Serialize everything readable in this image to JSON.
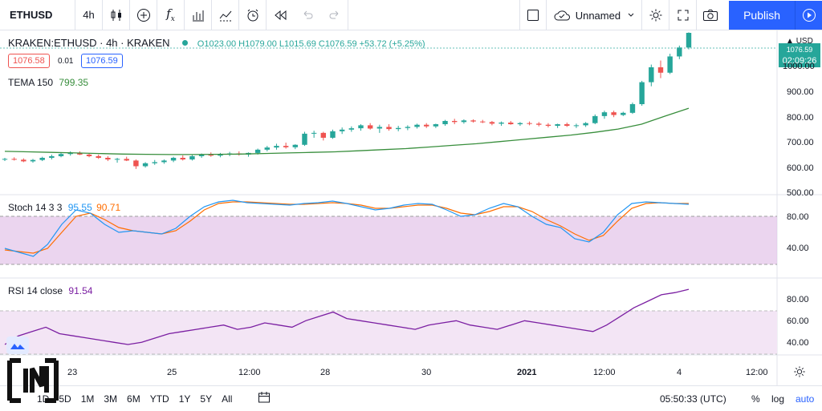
{
  "toolbar": {
    "symbol": "ETHUSD",
    "interval": "4h",
    "layout_name": "Unnamed",
    "publish_label": "Publish"
  },
  "legend": {
    "title": "KRAKEN:ETHUSD · 4h · KRAKEN",
    "ohlc": "O1023.00 H1079.00 L1015.69 C1076.59 +53.72 (+5.25%)",
    "bid": "1076.58",
    "spread": "0.01",
    "ask": "1076.59",
    "tema_label": "TEMA 150",
    "tema_value": "799.35"
  },
  "stoch": {
    "label": "Stoch 14 3 3",
    "k": "95.55",
    "d": "90.71"
  },
  "rsi": {
    "label": "RSI 14 close",
    "value": "91.54"
  },
  "price_axis": {
    "currency": "USD",
    "last_price_top": "1076.59",
    "countdown": "02:09:26",
    "ticks": [
      "1000.00",
      "900.00",
      "800.00",
      "700.00",
      "600.00",
      "500.00"
    ]
  },
  "stoch_axis": [
    "80.00",
    "40.00"
  ],
  "rsi_axis": [
    "80.00",
    "60.00",
    "40.00"
  ],
  "time_axis": [
    "23",
    "25",
    "12:00",
    "28",
    "30",
    "2021",
    "12:00",
    "4",
    "12:00"
  ],
  "bottom": {
    "ranges": [
      "1D",
      "5D",
      "1M",
      "3M",
      "6M",
      "YTD",
      "1Y",
      "5Y",
      "All"
    ],
    "clock": "05:50:33 (UTC)",
    "percent": "%",
    "log": "log",
    "auto": "auto"
  },
  "colors": {
    "up": "#26a69a",
    "down": "#ef5350",
    "tema": "#388e3c",
    "stoch_k": "#2196f3",
    "stoch_d": "#ff6d00",
    "rsi": "#7b1fa2",
    "accent": "#2962ff"
  },
  "chart_data": {
    "type": "candlestick",
    "price_range": [
      480,
      1080
    ],
    "ohlc": [
      [
        610,
        616,
        604,
        612
      ],
      [
        612,
        618,
        606,
        609
      ],
      [
        609,
        614,
        600,
        603
      ],
      [
        603,
        612,
        598,
        608
      ],
      [
        608,
        620,
        604,
        616
      ],
      [
        616,
        628,
        610,
        622
      ],
      [
        622,
        635,
        618,
        630
      ],
      [
        630,
        640,
        624,
        634
      ],
      [
        634,
        640,
        626,
        628
      ],
      [
        628,
        632,
        618,
        622
      ],
      [
        622,
        628,
        612,
        616
      ],
      [
        616,
        622,
        604,
        610
      ],
      [
        610,
        616,
        598,
        612
      ],
      [
        612,
        620,
        604,
        606
      ],
      [
        606,
        610,
        575,
        585
      ],
      [
        585,
        600,
        580,
        596
      ],
      [
        596,
        608,
        590,
        600
      ],
      [
        600,
        610,
        594,
        606
      ],
      [
        606,
        620,
        600,
        616
      ],
      [
        616,
        625,
        606,
        610
      ],
      [
        610,
        626,
        606,
        622
      ],
      [
        622,
        632,
        616,
        628
      ],
      [
        628,
        636,
        620,
        624
      ],
      [
        624,
        634,
        618,
        630
      ],
      [
        630,
        638,
        622,
        632
      ],
      [
        632,
        640,
        624,
        628
      ],
      [
        628,
        636,
        620,
        634
      ],
      [
        634,
        650,
        628,
        646
      ],
      [
        646,
        660,
        640,
        654
      ],
      [
        654,
        668,
        646,
        660
      ],
      [
        660,
        672,
        650,
        655
      ],
      [
        655,
        666,
        648,
        664
      ],
      [
        664,
        712,
        660,
        705
      ],
      [
        705,
        716,
        690,
        708
      ],
      [
        708,
        712,
        680,
        690
      ],
      [
        690,
        720,
        686,
        714
      ],
      [
        714,
        728,
        704,
        720
      ],
      [
        720,
        732,
        712,
        725
      ],
      [
        725,
        740,
        716,
        736
      ],
      [
        736,
        744,
        720,
        724
      ],
      [
        724,
        738,
        708,
        730
      ],
      [
        730,
        740,
        716,
        722
      ],
      [
        722,
        734,
        714,
        726
      ],
      [
        726,
        736,
        718,
        730
      ],
      [
        730,
        742,
        724,
        738
      ],
      [
        738,
        744,
        726,
        732
      ],
      [
        732,
        742,
        726,
        740
      ],
      [
        740,
        756,
        734,
        752
      ],
      [
        752,
        760,
        740,
        748
      ],
      [
        748,
        758,
        742,
        754
      ],
      [
        754,
        758,
        746,
        750
      ],
      [
        750,
        756,
        744,
        748
      ],
      [
        748,
        752,
        736,
        742
      ],
      [
        742,
        750,
        734,
        746
      ],
      [
        746,
        752,
        738,
        740
      ],
      [
        740,
        748,
        734,
        744
      ],
      [
        744,
        750,
        736,
        742
      ],
      [
        742,
        748,
        732,
        738
      ],
      [
        738,
        744,
        728,
        734
      ],
      [
        734,
        742,
        726,
        740
      ],
      [
        740,
        746,
        730,
        734
      ],
      [
        734,
        742,
        726,
        736
      ],
      [
        736,
        748,
        730,
        744
      ],
      [
        744,
        776,
        740,
        770
      ],
      [
        770,
        790,
        760,
        784
      ],
      [
        784,
        790,
        766,
        774
      ],
      [
        774,
        786,
        770,
        782
      ],
      [
        782,
        820,
        778,
        814
      ],
      [
        814,
        900,
        808,
        895
      ],
      [
        895,
        960,
        880,
        950
      ],
      [
        950,
        975,
        910,
        930
      ],
      [
        930,
        1000,
        925,
        990
      ],
      [
        990,
        1030,
        980,
        1023
      ],
      [
        1023,
        1079,
        1016,
        1077
      ]
    ],
    "tema": [
      640,
      638,
      636,
      634,
      632,
      630,
      629,
      628,
      628,
      629,
      630,
      632,
      634,
      636,
      638,
      642,
      646,
      650,
      656,
      662,
      668,
      676,
      684,
      692,
      700,
      710,
      722,
      740,
      770,
      799
    ],
    "stoch_k": [
      40,
      35,
      30,
      45,
      70,
      88,
      84,
      70,
      60,
      62,
      60,
      58,
      65,
      80,
      92,
      98,
      100,
      97,
      96,
      95,
      94,
      96,
      97,
      99,
      96,
      92,
      88,
      90,
      94,
      96,
      95,
      88,
      80,
      82,
      90,
      96,
      92,
      80,
      70,
      66,
      52,
      48,
      60,
      82,
      96,
      98,
      97,
      96,
      95
    ],
    "stoch_d": [
      38,
      36,
      34,
      40,
      60,
      80,
      84,
      76,
      66,
      62,
      60,
      58,
      62,
      74,
      88,
      96,
      98,
      98,
      97,
      96,
      95,
      95,
      96,
      97,
      96,
      94,
      90,
      90,
      92,
      94,
      94,
      90,
      84,
      82,
      86,
      92,
      92,
      86,
      76,
      68,
      58,
      50,
      56,
      74,
      90,
      96,
      97,
      96,
      96
    ],
    "rsi": [
      40,
      48,
      52,
      56,
      50,
      48,
      46,
      44,
      42,
      40,
      42,
      46,
      50,
      52,
      54,
      56,
      58,
      54,
      56,
      60,
      58,
      56,
      62,
      66,
      70,
      64,
      62,
      60,
      58,
      56,
      54,
      58,
      60,
      62,
      58,
      56,
      54,
      58,
      62,
      60,
      58,
      56,
      54,
      52,
      58,
      66,
      74,
      80,
      86,
      88,
      91
    ]
  }
}
